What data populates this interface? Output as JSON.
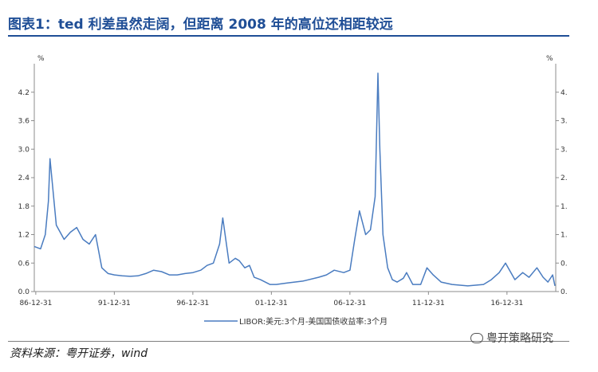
{
  "header": {
    "title": "图表1：ted 利差虽然走阔，但距离 2008 年的高位还相距较远"
  },
  "footer": {
    "source": "资料来源：粤开证券，wind",
    "watermark": "粤开策略研究"
  },
  "chart_data": {
    "type": "line",
    "title": "",
    "left_unit": "%",
    "right_unit": "%",
    "ylim": [
      0,
      4.8
    ],
    "y_ticks": [
      "0.0",
      "0.6",
      "1.2",
      "1.8",
      "2.4",
      "3.0",
      "3.6",
      "4.2"
    ],
    "y_ticks_right": [
      "0.",
      "0.",
      "1.",
      "1.",
      "2.",
      "3.",
      "3.",
      "4."
    ],
    "x_ticks": [
      "86-12-31",
      "91-12-31",
      "96-12-31",
      "01-12-31",
      "06-12-31",
      "11-12-31",
      "16-12-31"
    ],
    "xlim": [
      1986.9,
      2020.1
    ],
    "grid": false,
    "legend_position": "bottom-center",
    "series": [
      {
        "name": "LIBOR:美元:3个月-美国国债收益率:3个月",
        "color": "#4a7cc0",
        "x": [
          1986.9,
          1987.3,
          1987.6,
          1987.8,
          1987.9,
          1988.3,
          1988.8,
          1989.2,
          1989.6,
          1990.0,
          1990.4,
          1990.8,
          1991.2,
          1991.6,
          1992.0,
          1992.5,
          1993.0,
          1993.5,
          1994.0,
          1994.5,
          1995.0,
          1995.5,
          1996.0,
          1996.5,
          1997.0,
          1997.5,
          1997.9,
          1998.3,
          1998.7,
          1998.9,
          1999.3,
          1999.7,
          1999.95,
          2000.3,
          2000.6,
          2000.9,
          2001.3,
          2001.6,
          2001.9,
          2002.3,
          2003.0,
          2004.0,
          2005.0,
          2005.5,
          2006.0,
          2006.6,
          2007.0,
          2007.3,
          2007.6,
          2007.8,
          2008.0,
          2008.3,
          2008.6,
          2008.78,
          2008.9,
          2009.1,
          2009.4,
          2009.7,
          2010.0,
          2010.4,
          2010.6,
          2011.0,
          2011.5,
          2011.9,
          2012.3,
          2012.8,
          2013.5,
          2014.5,
          2015.5,
          2016.0,
          2016.5,
          2016.9,
          2017.5,
          2018.0,
          2018.4,
          2018.9,
          2019.3,
          2019.6,
          2019.9,
          2020.05
        ],
        "values": [
          0.95,
          0.9,
          1.2,
          1.9,
          2.8,
          1.4,
          1.1,
          1.25,
          1.35,
          1.1,
          1.0,
          1.2,
          0.5,
          0.38,
          0.35,
          0.33,
          0.32,
          0.33,
          0.38,
          0.45,
          0.42,
          0.35,
          0.35,
          0.38,
          0.4,
          0.45,
          0.55,
          0.6,
          1.0,
          1.55,
          0.6,
          0.7,
          0.65,
          0.5,
          0.55,
          0.3,
          0.25,
          0.2,
          0.15,
          0.15,
          0.18,
          0.22,
          0.3,
          0.35,
          0.45,
          0.4,
          0.45,
          1.1,
          1.7,
          1.45,
          1.2,
          1.3,
          2.0,
          4.6,
          3.0,
          1.2,
          0.5,
          0.25,
          0.2,
          0.28,
          0.4,
          0.15,
          0.15,
          0.5,
          0.35,
          0.2,
          0.15,
          0.12,
          0.15,
          0.25,
          0.4,
          0.6,
          0.25,
          0.4,
          0.3,
          0.5,
          0.3,
          0.2,
          0.35,
          0.12
        ]
      }
    ]
  }
}
